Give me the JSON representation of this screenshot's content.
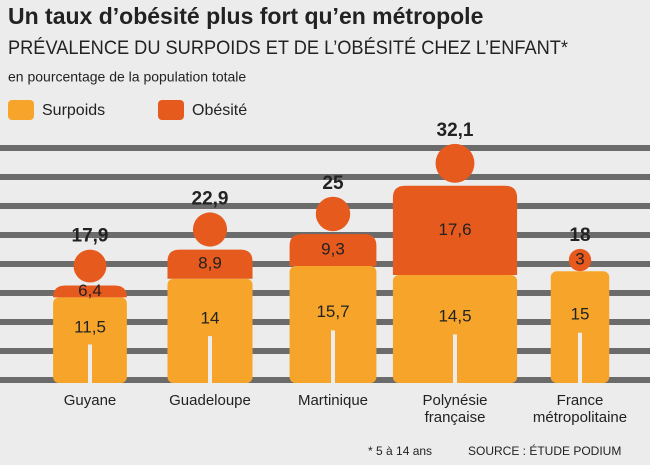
{
  "chart_data": {
    "type": "stacked-figure",
    "title": "Un taux d’obésité plus fort qu’en métropole",
    "subtitle": "PRÉVALENCE DU SURPOIDS ET DE L’OBÉSITÉ CHEZ L’ENFANT*",
    "unit_note": "en pourcentage de la population totale",
    "categories": [
      [
        "Guyane"
      ],
      [
        "Guadeloupe"
      ],
      [
        "Martinique"
      ],
      [
        "Polynésie",
        "française"
      ],
      [
        "France",
        "métropolitaine"
      ]
    ],
    "series": [
      {
        "name": "Surpoids",
        "color": "#f7a52a",
        "values": [
          11.5,
          14,
          15.7,
          14.5,
          15
        ],
        "value_labels": [
          "11,5",
          "14",
          "15,7",
          "14,5",
          "15"
        ]
      },
      {
        "name": "Obésité",
        "color": "#e65a1e",
        "values": [
          6.4,
          8.9,
          9.3,
          17.6,
          3
        ],
        "value_labels": [
          "6,4",
          "8,9",
          "9,3",
          "17,6",
          "3"
        ]
      }
    ],
    "totals": [
      17.9,
      22.9,
      25,
      32.1,
      18
    ],
    "total_labels": [
      "17,9",
      "22,9",
      "25",
      "32,1",
      "18"
    ],
    "footnote": "* 5 à 14 ans",
    "source": "SOURCE : ÉTUDE PODIUM"
  }
}
